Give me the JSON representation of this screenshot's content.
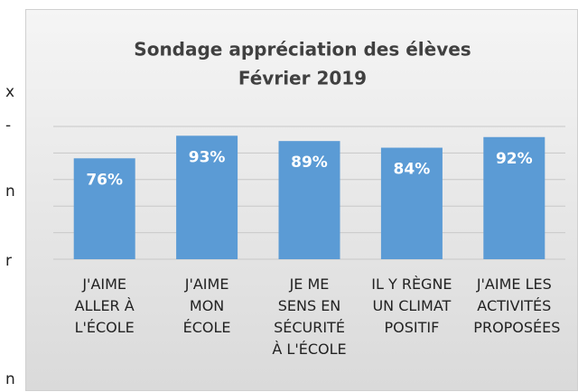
{
  "background_text": [
    "x",
    "-",
    "n",
    "r",
    "n"
  ],
  "chart_data": {
    "type": "bar",
    "title_lines": [
      "Sondage appréciation des élèves",
      "Février 2019"
    ],
    "categories": [
      "J'AIME ALLER À L'ÉCOLE",
      "J'AIME MON ÉCOLE",
      "JE ME SENS EN SÉCURITÉ À L'ÉCOLE",
      "IL Y RÈGNE UN CLIMAT POSITIF",
      "J'AIME LES ACTIVITÉS PROPOSÉES"
    ],
    "values": [
      76,
      93,
      89,
      84,
      92
    ],
    "value_labels": [
      "76%",
      "93%",
      "89%",
      "84%",
      "92%"
    ],
    "color": "#5b9bd5",
    "ylim": [
      0,
      100
    ],
    "yticks": [
      0,
      20,
      40,
      60,
      80,
      100
    ],
    "grid": true
  }
}
